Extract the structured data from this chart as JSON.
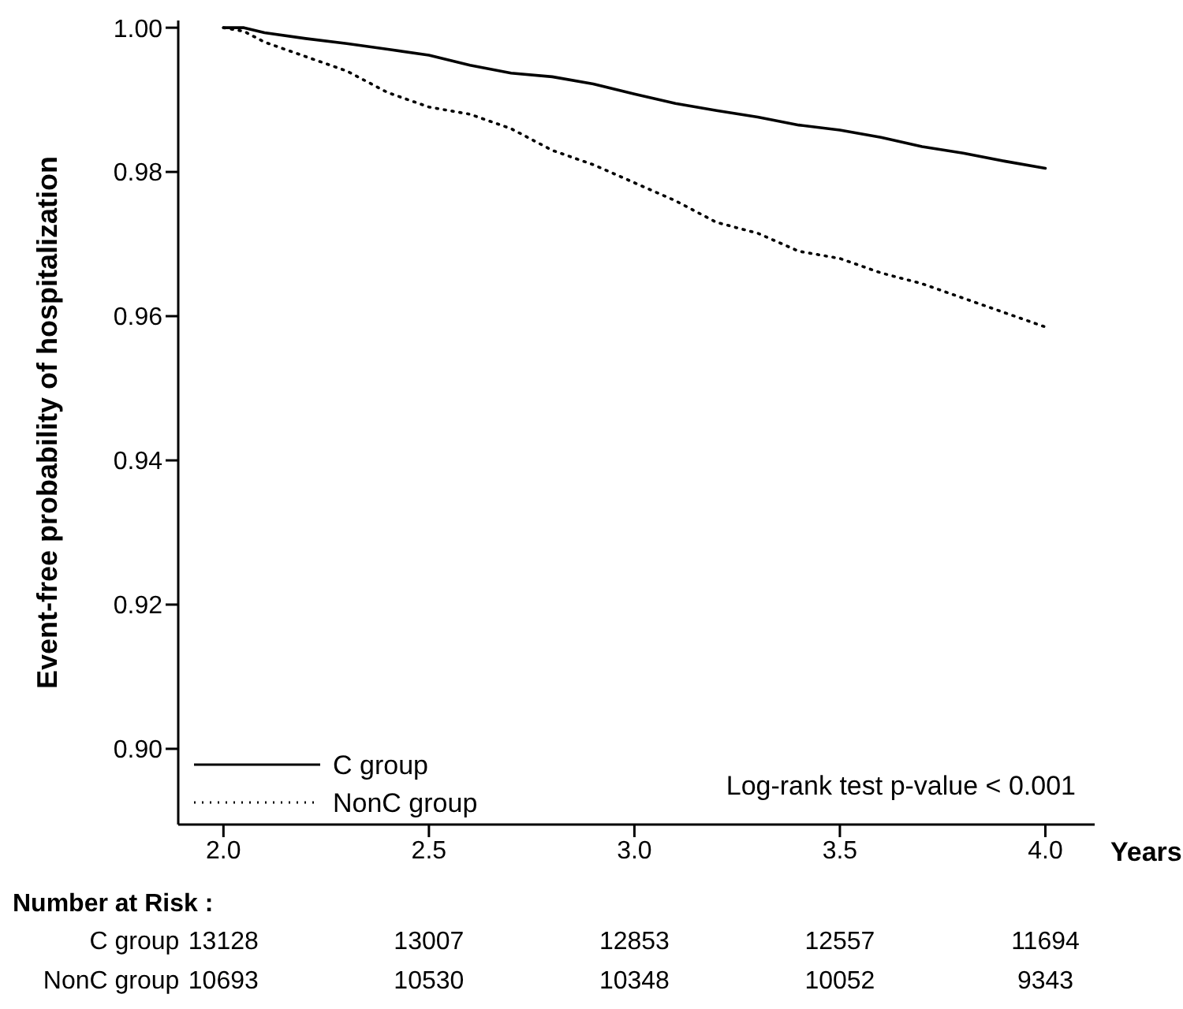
{
  "chart_data": {
    "type": "line",
    "ylabel": "Event-free probability of hospitalization",
    "xlabel": "Years",
    "xlim": [
      1.89,
      4.12
    ],
    "xticks": [
      {
        "value": 2,
        "label": "2.0"
      },
      {
        "value": 2.5,
        "label": "2.5"
      },
      {
        "value": 3,
        "label": "3.0"
      },
      {
        "value": 3.5,
        "label": "3.5"
      },
      {
        "value": 4,
        "label": "4.0"
      }
    ],
    "ylim": [
      0.8895,
      1.001
    ],
    "yticks": [
      {
        "value": 0.9,
        "label": "0.90"
      },
      {
        "value": 0.92,
        "label": "0.92"
      },
      {
        "value": 0.94,
        "label": "0.94"
      },
      {
        "value": 0.96,
        "label": "0.96"
      },
      {
        "value": 0.98,
        "label": "0.98"
      },
      {
        "value": 1,
        "label": "1.00"
      }
    ],
    "x": [
      2.0,
      2.05,
      2.1,
      2.2,
      2.3,
      2.4,
      2.5,
      2.6,
      2.7,
      2.8,
      2.9,
      3.0,
      3.1,
      3.2,
      3.3,
      3.4,
      3.5,
      3.6,
      3.7,
      3.8,
      3.9,
      4.0
    ],
    "series": [
      {
        "name": "C group",
        "color": "#000000",
        "line_style": "solid",
        "values": [
          1.0,
          1.0,
          0.9993,
          0.9985,
          0.9978,
          0.997,
          0.9962,
          0.9948,
          0.9937,
          0.9932,
          0.9922,
          0.9908,
          0.9895,
          0.9885,
          0.9876,
          0.9865,
          0.9858,
          0.9848,
          0.9835,
          0.9826,
          0.9815,
          0.9805
        ]
      },
      {
        "name": "NonC group",
        "color": "#000000",
        "line_style": "dotted",
        "values": [
          1.0,
          0.9995,
          0.998,
          0.996,
          0.994,
          0.991,
          0.989,
          0.988,
          0.986,
          0.983,
          0.981,
          0.9785,
          0.976,
          0.973,
          0.9715,
          0.969,
          0.968,
          0.966,
          0.9645,
          0.9625,
          0.9605,
          0.9585
        ]
      }
    ],
    "legend": "bottom left",
    "grid": false,
    "marker": "none",
    "annotations": [
      "Log-rank test  p-value < 0.001",
      "Number at Risk :",
      "C group",
      "13128",
      "13007",
      "12853",
      "12557",
      "11694",
      "NonC group",
      "10693",
      "10530",
      "10348",
      "10052",
      "9343"
    ]
  }
}
